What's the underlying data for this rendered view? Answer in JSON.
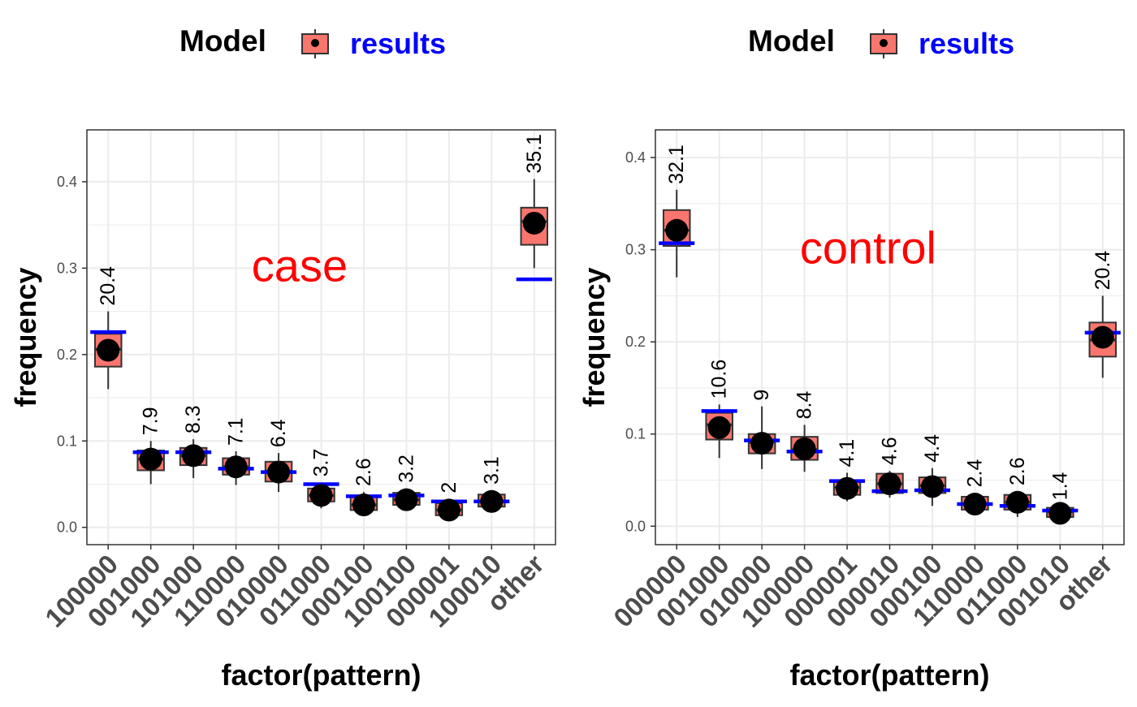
{
  "colors": {
    "box_fill": "#F8766D",
    "box_stroke": "#333333",
    "point": "#000000",
    "observed_line": "#0000FF",
    "panel_label": "#FF0000",
    "legend_key_label": "#0000FF",
    "axis_text": "#4D4D4D",
    "grid": "#EBEBEB"
  },
  "chart_data": [
    {
      "type": "boxplot",
      "panel_label": "case",
      "xlabel": "factor(pattern)",
      "ylabel": "frequency",
      "ylim": [
        -0.02,
        0.46
      ],
      "yticks": [
        "0.0",
        "0.1",
        "0.2",
        "0.3",
        "0.4"
      ],
      "ytick_values": [
        0.0,
        0.1,
        0.2,
        0.3,
        0.4
      ],
      "grid": true,
      "legend": {
        "title": "Model",
        "position": "top",
        "entries": [
          "results"
        ]
      },
      "categories": [
        "100000",
        "001000",
        "101000",
        "110000",
        "010000",
        "011000",
        "000100",
        "100100",
        "000001",
        "100010",
        "other"
      ],
      "series": [
        {
          "name": "results",
          "boxes": [
            {
              "low": 0.16,
              "q1": 0.186,
              "median": 0.206,
              "q3": 0.224,
              "high": 0.25
            },
            {
              "low": 0.05,
              "q1": 0.066,
              "median": 0.079,
              "q3": 0.089,
              "high": 0.1
            },
            {
              "low": 0.057,
              "q1": 0.072,
              "median": 0.083,
              "q3": 0.092,
              "high": 0.102
            },
            {
              "low": 0.049,
              "q1": 0.061,
              "median": 0.07,
              "q3": 0.08,
              "high": 0.088
            },
            {
              "low": 0.041,
              "q1": 0.053,
              "median": 0.065,
              "q3": 0.076,
              "high": 0.086
            },
            {
              "low": 0.022,
              "q1": 0.03,
              "median": 0.037,
              "q3": 0.045,
              "high": 0.052
            },
            {
              "low": 0.015,
              "q1": 0.02,
              "median": 0.026,
              "q3": 0.036,
              "high": 0.041
            },
            {
              "low": 0.022,
              "q1": 0.026,
              "median": 0.032,
              "q3": 0.04,
              "high": 0.045
            },
            {
              "low": 0.012,
              "q1": 0.014,
              "median": 0.02,
              "q3": 0.028,
              "high": 0.033
            },
            {
              "low": 0.017,
              "q1": 0.024,
              "median": 0.03,
              "q3": 0.038,
              "high": 0.043
            },
            {
              "low": 0.3,
              "q1": 0.327,
              "median": 0.354,
              "q3": 0.37,
              "high": 0.403
            }
          ],
          "points": [
            0.205,
            0.079,
            0.083,
            0.07,
            0.064,
            0.037,
            0.026,
            0.032,
            0.02,
            0.03,
            0.352
          ]
        }
      ],
      "observed": [
        0.226,
        0.087,
        0.087,
        0.068,
        0.064,
        0.05,
        0.036,
        0.037,
        0.03,
        0.03,
        0.287
      ],
      "point_labels": [
        "20.4",
        "7.9",
        "8.3",
        "7.1",
        "6.4",
        "3.7",
        "2.6",
        "3.2",
        "2",
        "3.1",
        "35.1"
      ]
    },
    {
      "type": "boxplot",
      "panel_label": "control",
      "xlabel": "factor(pattern)",
      "ylabel": "frequency",
      "ylim": [
        -0.02,
        0.43
      ],
      "yticks": [
        "0.0",
        "0.1",
        "0.2",
        "0.3",
        "0.4"
      ],
      "ytick_values": [
        0.0,
        0.1,
        0.2,
        0.3,
        0.4
      ],
      "grid": true,
      "legend": {
        "title": "Model",
        "position": "top",
        "entries": [
          "results"
        ]
      },
      "categories": [
        "000000",
        "001000",
        "010000",
        "100000",
        "000001",
        "000010",
        "000100",
        "110000",
        "011000",
        "001010",
        "other"
      ],
      "series": [
        {
          "name": "results",
          "boxes": [
            {
              "low": 0.27,
              "q1": 0.304,
              "median": 0.321,
              "q3": 0.343,
              "high": 0.365
            },
            {
              "low": 0.074,
              "q1": 0.094,
              "median": 0.11,
              "q3": 0.123,
              "high": 0.132
            },
            {
              "low": 0.062,
              "q1": 0.079,
              "median": 0.091,
              "q3": 0.1,
              "high": 0.13
            },
            {
              "low": 0.059,
              "q1": 0.072,
              "median": 0.083,
              "q3": 0.097,
              "high": 0.11
            },
            {
              "low": 0.027,
              "q1": 0.034,
              "median": 0.042,
              "q3": 0.048,
              "high": 0.058
            },
            {
              "low": 0.031,
              "q1": 0.036,
              "median": 0.046,
              "q3": 0.057,
              "high": 0.06
            },
            {
              "low": 0.022,
              "q1": 0.036,
              "median": 0.044,
              "q3": 0.053,
              "high": 0.063
            },
            {
              "low": 0.016,
              "q1": 0.018,
              "median": 0.024,
              "q3": 0.032,
              "high": 0.036
            },
            {
              "low": 0.01,
              "q1": 0.018,
              "median": 0.026,
              "q3": 0.034,
              "high": 0.038
            },
            {
              "low": 0.009,
              "q1": 0.01,
              "median": 0.016,
              "q3": 0.02,
              "high": 0.022
            },
            {
              "low": 0.161,
              "q1": 0.184,
              "median": 0.202,
              "q3": 0.221,
              "high": 0.25
            }
          ],
          "points": [
            0.321,
            0.107,
            0.09,
            0.084,
            0.041,
            0.046,
            0.043,
            0.024,
            0.026,
            0.014,
            0.205
          ]
        }
      ],
      "observed": [
        0.307,
        0.125,
        0.093,
        0.081,
        0.049,
        0.038,
        0.039,
        0.024,
        0.022,
        0.017,
        0.21
      ],
      "point_labels": [
        "32.1",
        "10.6",
        "9",
        "8.4",
        "4.1",
        "4.6",
        "4.4",
        "2.4",
        "2.6",
        "1.4",
        "20.4"
      ]
    }
  ]
}
